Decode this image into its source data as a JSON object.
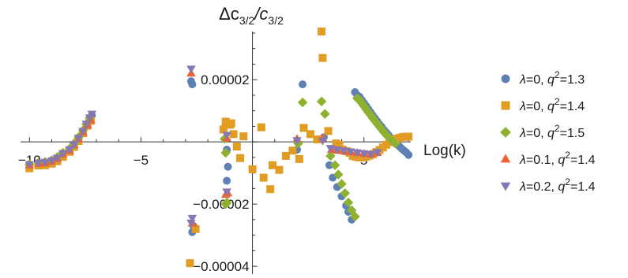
{
  "chart_data": {
    "type": "scatter",
    "title": "Δc3/2/c3/2",
    "title_parts": {
      "delta": "Δc",
      "sub1": "3/2",
      "slash": "/c",
      "sub2": "3/2"
    },
    "xlabel": "Log(k)",
    "ylabel": "",
    "xlim": [
      -10.4,
      7.1
    ],
    "ylim": [
      -4.25e-05,
      3.55e-05
    ],
    "x_ticks": [
      {
        "value": -10,
        "label": "−10"
      },
      {
        "value": -5,
        "label": "−5"
      },
      {
        "value": 5,
        "label": "5"
      }
    ],
    "y_ticks": [
      {
        "value": 2e-05,
        "label": "0.00002"
      },
      {
        "value": -2e-05,
        "label": "−0.00002"
      },
      {
        "value": -4e-05,
        "label": "−0.00004"
      }
    ],
    "grid": false,
    "legend_position": "right",
    "series": [
      {
        "legend": {
          "lam": "λ=0,",
          "q": "q",
          "sup": "2",
          "val": "=1.3"
        },
        "color": "#5e81b5",
        "marker": "circle",
        "points": [
          [
            -10,
            -7.3e-06
          ],
          [
            -9.6,
            -6.8e-06
          ],
          [
            -9.3,
            -6.6e-06
          ],
          [
            -9.0,
            -6.1e-06
          ],
          [
            -8.75,
            -5.2e-06
          ],
          [
            -8.5,
            -3.8e-06
          ],
          [
            -8.2,
            -2.6e-06
          ],
          [
            -8.0,
            -9e-07
          ],
          [
            -7.8,
            1.1e-06
          ],
          [
            -7.6,
            3.3e-06
          ],
          [
            -7.4,
            5.6e-06
          ],
          [
            -7.3,
            7.3e-06
          ],
          [
            -7.2,
            8.5e-06
          ],
          [
            -2.7,
            1.85e-05
          ],
          [
            -2.75,
            1.95e-05
          ],
          [
            -1.2,
            5.5e-06
          ],
          [
            -1.15,
            -2.5e-06
          ],
          [
            -1.1,
            -8e-06
          ],
          [
            -1.15,
            -1.25e-05
          ],
          [
            -2.65,
            -2.7e-05
          ],
          [
            -2.7,
            -2.9e-05
          ],
          [
            2.0,
            -2.5e-06
          ],
          [
            2.25,
            1.85e-05
          ],
          [
            3.2,
            1.5e-06
          ],
          [
            3.45,
            -7.5e-06
          ],
          [
            3.6,
            -1.15e-05
          ],
          [
            3.8,
            -1.45e-05
          ],
          [
            4.0,
            -1.75e-05
          ],
          [
            4.2,
            -2.05e-05
          ],
          [
            4.3,
            -2.25e-05
          ],
          [
            4.45,
            -2.5e-05
          ],
          [
            4.6,
            1.6e-05
          ],
          [
            4.7,
            1.5e-05
          ],
          [
            4.8,
            1.45e-05
          ],
          [
            4.9,
            1.35e-05
          ],
          [
            5.0,
            1.25e-05
          ],
          [
            5.1,
            1.15e-05
          ],
          [
            5.2,
            1.05e-05
          ],
          [
            5.3,
            9.5e-06
          ],
          [
            5.4,
            8.5e-06
          ],
          [
            5.5,
            7.5e-06
          ],
          [
            5.6,
            6.6e-06
          ],
          [
            5.7,
            5.6e-06
          ],
          [
            5.8,
            4.8e-06
          ],
          [
            5.9,
            3.8e-06
          ],
          [
            6.0,
            3e-06
          ],
          [
            6.1,
            2.2e-06
          ],
          [
            6.2,
            1.3e-06
          ],
          [
            6.3,
            6e-07
          ],
          [
            6.4,
            -2e-07
          ],
          [
            6.5,
            -8e-07
          ],
          [
            6.6,
            -1.5e-06
          ],
          [
            6.7,
            -2.2e-06
          ],
          [
            6.8,
            -2.8e-06
          ],
          [
            6.9,
            -3.4e-06
          ],
          [
            7.0,
            -4.2e-06
          ]
        ]
      },
      {
        "legend": {
          "lam": "λ=0,",
          "q": "q",
          "sup": "2",
          "val": "=1.4"
        },
        "color": "#e19c24",
        "marker": "square",
        "points": [
          [
            -10,
            -8.5e-06
          ],
          [
            -9.6,
            -7.6e-06
          ],
          [
            -9.3,
            -7.5e-06
          ],
          [
            -9.0,
            -7e-06
          ],
          [
            -8.75,
            -6.2e-06
          ],
          [
            -8.5,
            -4.8e-06
          ],
          [
            -8.2,
            -3.2e-06
          ],
          [
            -8.0,
            -1.6e-06
          ],
          [
            -7.8,
            3e-07
          ],
          [
            -7.6,
            2.8e-06
          ],
          [
            -7.4,
            5.2e-06
          ],
          [
            -7.25,
            6.8e-06
          ],
          [
            -2.8,
            -3.9e-05
          ],
          [
            -2.55,
            -2.8e-05
          ],
          [
            -1.3,
            4e-06
          ],
          [
            -1.2,
            6.5e-06
          ],
          [
            -1.0,
            5.5e-06
          ],
          [
            -0.95,
            6e-06
          ],
          [
            -0.85,
            2.5e-06
          ],
          [
            -0.7,
            -1.5e-06
          ],
          [
            -0.55,
            -5.2e-06
          ],
          [
            -0.4,
            1.8e-06
          ],
          [
            0.0,
            -8.8e-06
          ],
          [
            0.4,
            4.7e-06
          ],
          [
            0.5,
            -1.15e-05
          ],
          [
            0.8,
            -1.52e-05
          ],
          [
            0.9,
            -7.5e-06
          ],
          [
            1.2,
            -9e-06
          ],
          [
            1.5,
            -4.5e-06
          ],
          [
            1.8,
            -2.8e-06
          ],
          [
            2.1,
            -5.5e-06
          ],
          [
            2.3,
            4.5e-06
          ],
          [
            2.6,
            2.5e-06
          ],
          [
            2.9,
            8e-07
          ],
          [
            3.1,
            3.55e-05
          ],
          [
            3.15,
            2.7e-05
          ],
          [
            3.4,
            3.5e-06
          ],
          [
            3.75,
            -5e-07
          ],
          [
            3.9,
            -1e-06
          ],
          [
            4.05,
            -2.5e-06
          ],
          [
            4.2,
            -3e-06
          ],
          [
            4.35,
            -3.5e-06
          ],
          [
            4.5,
            -4.5e-06
          ],
          [
            4.65,
            -4.8e-06
          ],
          [
            4.8,
            -5e-06
          ],
          [
            4.95,
            -5e-06
          ],
          [
            5.1,
            -4.8e-06
          ],
          [
            5.25,
            -4.4e-06
          ],
          [
            5.4,
            -4e-06
          ],
          [
            5.55,
            -3.3e-06
          ],
          [
            5.7,
            -2.6e-06
          ],
          [
            5.85,
            -1.8e-06
          ],
          [
            6.0,
            -9e-07
          ],
          [
            6.15,
            -1e-07
          ],
          [
            6.3,
            4e-07
          ],
          [
            6.45,
            1e-06
          ],
          [
            6.6,
            1.3e-06
          ],
          [
            6.75,
            1.6e-06
          ],
          [
            6.9,
            1.7e-06
          ],
          [
            7.0,
            1.7e-06
          ]
        ]
      },
      {
        "legend": {
          "lam": "λ=0,",
          "q": "q",
          "sup": "2",
          "val": "=1.5"
        },
        "color": "#8fb131",
        "marker": "diamond",
        "points": [
          [
            -10,
            -7.2e-06
          ],
          [
            -9.6,
            -6.7e-06
          ],
          [
            -9.3,
            -6.4e-06
          ],
          [
            -9.0,
            -5.9e-06
          ],
          [
            -8.75,
            -4.9e-06
          ],
          [
            -8.5,
            -3.5e-06
          ],
          [
            -8.2,
            -2.2e-06
          ],
          [
            -8.0,
            -5e-07
          ],
          [
            -7.8,
            1.5e-06
          ],
          [
            -7.6,
            3.7e-06
          ],
          [
            -7.45,
            5.7e-06
          ],
          [
            -7.3,
            7.7e-06
          ],
          [
            -1.25,
            1e-06
          ],
          [
            -1.2,
            -3.5e-06
          ],
          [
            -1.15,
            -1.95e-05
          ],
          [
            -1.2,
            -2e-05
          ],
          [
            2.05,
            -5e-07
          ],
          [
            2.25,
            1.27e-05
          ],
          [
            3.1,
            1.3e-05
          ],
          [
            3.25,
            9e-06
          ],
          [
            3.5,
            -4.5e-06
          ],
          [
            3.7,
            -7.5e-06
          ],
          [
            3.85,
            -1.05e-05
          ],
          [
            4.0,
            -1.35e-05
          ],
          [
            4.15,
            -1.65e-05
          ],
          [
            4.3,
            -1.95e-05
          ],
          [
            4.45,
            -2.2e-05
          ],
          [
            4.6,
            -2.4e-05
          ],
          [
            4.7,
            1.4e-05
          ],
          [
            4.8,
            1.35e-05
          ],
          [
            4.9,
            1.25e-05
          ],
          [
            5.0,
            1.15e-05
          ],
          [
            5.1,
            1.05e-05
          ],
          [
            5.2,
            9.5e-06
          ],
          [
            5.3,
            8.6e-06
          ],
          [
            5.4,
            7.6e-06
          ],
          [
            5.5,
            6.7e-06
          ],
          [
            5.6,
            5.8e-06
          ],
          [
            5.7,
            4.9e-06
          ],
          [
            5.8,
            4e-06
          ],
          [
            5.9,
            3.1e-06
          ],
          [
            6.0,
            2.3e-06
          ],
          [
            6.1,
            1.5e-06
          ],
          [
            6.2,
            8e-07
          ],
          [
            6.3,
            1e-07
          ],
          [
            6.4,
            -5e-07
          ]
        ]
      },
      {
        "legend": {
          "lam": "λ=0.1,",
          "q": "q",
          "sup": "2",
          "val": "=1.4"
        },
        "color": "#eb6235",
        "marker": "triangle-up",
        "points": [
          [
            -10,
            -7.5e-06
          ],
          [
            -9.6,
            -7e-06
          ],
          [
            -9.3,
            -6.8e-06
          ],
          [
            -9.0,
            -6.3e-06
          ],
          [
            -8.75,
            -5.4e-06
          ],
          [
            -8.5,
            -4e-06
          ],
          [
            -8.2,
            -2.8e-06
          ],
          [
            -8.0,
            -1.1e-06
          ],
          [
            -7.8,
            9e-07
          ],
          [
            -7.6,
            3.1e-06
          ],
          [
            -7.4,
            5.4e-06
          ],
          [
            -7.25,
            7e-06
          ],
          [
            -2.75,
            2.2e-05
          ],
          [
            -1.15,
            1.2e-06
          ],
          [
            -1.1,
            -1.65e-05
          ],
          [
            -1.2,
            -1.7e-05
          ],
          [
            -2.7,
            -2.62e-05
          ],
          [
            2.0,
            1e-06
          ],
          [
            3.15,
            1.2e-06
          ],
          [
            3.55,
            -2.5e-06
          ],
          [
            3.8,
            -2.8e-06
          ],
          [
            4.1,
            -3e-06
          ],
          [
            4.4,
            -3.2e-06
          ],
          [
            4.7,
            -3.5e-06
          ],
          [
            5.0,
            -3.8e-06
          ],
          [
            5.3,
            -4e-06
          ],
          [
            5.6,
            -3.5e-06
          ]
        ]
      },
      {
        "legend": {
          "lam": "λ=0.2,",
          "q": "q",
          "sup": "2",
          "val": "=1.4"
        },
        "color": "#8778b3",
        "marker": "triangle-down",
        "points": [
          [
            -10,
            -7.2e-06
          ],
          [
            -9.6,
            -6.7e-06
          ],
          [
            -9.3,
            -6.5e-06
          ],
          [
            -9.0,
            -6e-06
          ],
          [
            -8.75,
            -5.1e-06
          ],
          [
            -8.5,
            -3.7e-06
          ],
          [
            -8.2,
            -2.4e-06
          ],
          [
            -8.0,
            -7e-07
          ],
          [
            -7.8,
            1.3e-06
          ],
          [
            -7.6,
            3.5e-06
          ],
          [
            -7.45,
            5.8e-06
          ],
          [
            -7.3,
            7.8e-06
          ],
          [
            -7.2,
            9e-06
          ],
          [
            -2.75,
            2.35e-05
          ],
          [
            -1.15,
            2.2e-06
          ],
          [
            -1.15,
            -1.6e-05
          ],
          [
            -2.7,
            -2.45e-05
          ],
          [
            -2.75,
            -2.6e-05
          ],
          [
            2.0,
            5e-07
          ],
          [
            3.15,
            4e-07
          ],
          [
            3.5,
            -2e-06
          ],
          [
            3.8,
            -2.5e-06
          ],
          [
            4.1,
            -2.8e-06
          ],
          [
            4.4,
            -3.1e-06
          ],
          [
            4.7,
            -3.4e-06
          ],
          [
            5.0,
            -3.7e-06
          ],
          [
            5.3,
            -3.9e-06
          ],
          [
            5.6,
            -3.3e-06
          ]
        ]
      }
    ]
  }
}
